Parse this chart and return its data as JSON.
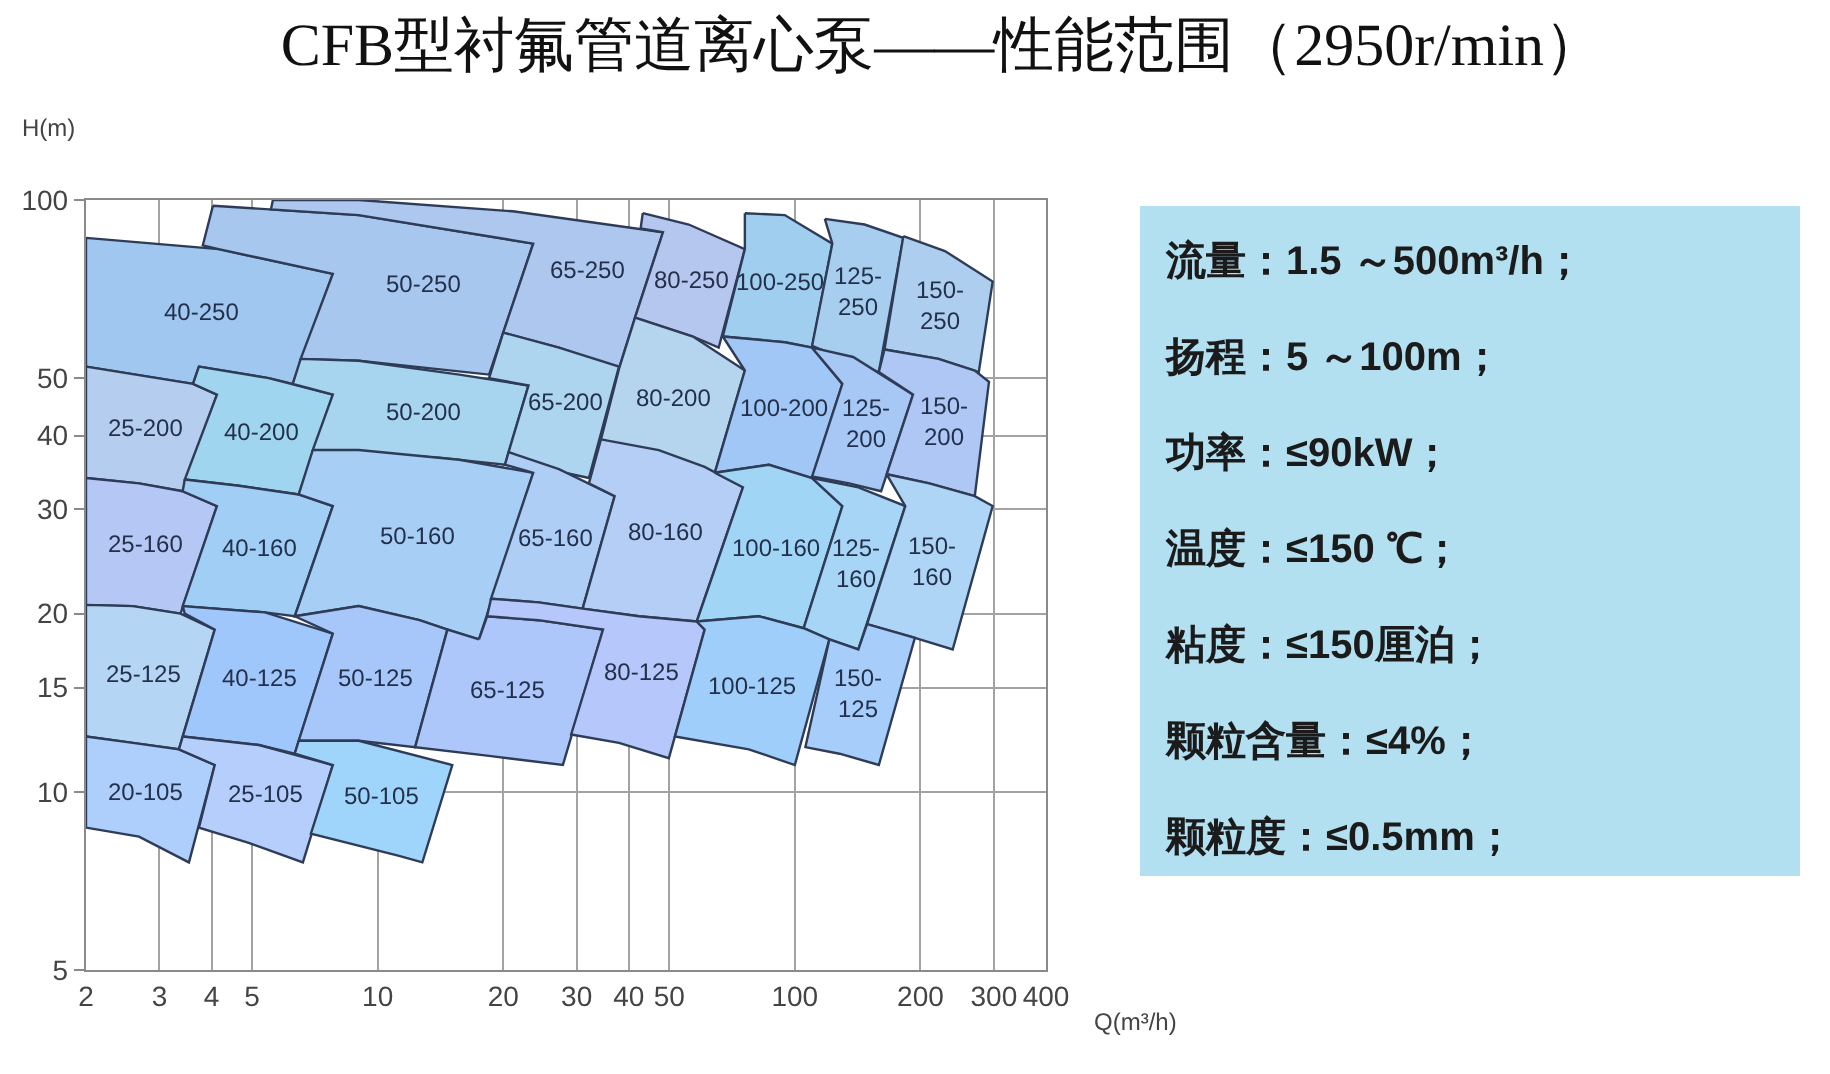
{
  "chart_data": [
    {
      "type": "area",
      "title": "CFB型衬氟管道离心泵——性能范围（2950r/min）",
      "xlabel": "Q(m³/h)",
      "ylabel": "H(m)",
      "log": "xy",
      "xlim": [
        2,
        400
      ],
      "ylim": [
        5,
        100
      ],
      "xticks": [
        2,
        3,
        4,
        5,
        10,
        20,
        30,
        40,
        50,
        100,
        200,
        300,
        400
      ],
      "yticks": [
        5,
        10,
        15,
        20,
        30,
        40,
        50,
        100
      ],
      "grid": true,
      "series": [
        {
          "name": "40-250",
          "color": "#a0c7ef",
          "x": [
            2,
            4.16,
            7.81,
            6.26,
            5.48,
            3.73,
            3.61,
            2.77,
            2
          ],
          "values": [
            86.3,
            82.6,
            75,
            48.9,
            50,
            52.3,
            48.9,
            50.4,
            52.3
          ]
        },
        {
          "name": "50-250",
          "color": "#a7c7ef",
          "x": [
            4.03,
            9.01,
            23.6,
            18.5,
            9.01,
            6.54,
            7.81,
            4.16,
            3.81
          ],
          "values": [
            97.8,
            94.3,
            84.4,
            50.7,
            53.5,
            53.9,
            75,
            82.6,
            83.8
          ]
        },
        {
          "name": "65-250",
          "color": "#aec7ef",
          "x": [
            5.61,
            9.01,
            21.1,
            48.3,
            41.4,
            37.9,
            27.2,
            20,
            23.6,
            9.01,
            5.55
          ],
          "values": [
            100,
            100,
            95.7,
            88.2,
            63.3,
            51.9,
            56.3,
            59.7,
            84.4,
            94.3,
            96.4
          ]
        },
        {
          "name": "80-250",
          "color": "#b5c7ef",
          "x": [
            43.2,
            55.7,
            75.9,
            65.7,
            57,
            41.4,
            48.3,
            42.7
          ],
          "values": [
            95,
            90.9,
            82.6,
            56.3,
            58.8,
            63.3,
            88.2,
            89.5
          ]
        },
        {
          "name": "100-250",
          "color": "#a0ceef",
          "x": [
            75.9,
            94.6,
            123,
            110,
            94.6,
            67.2,
            75.9
          ],
          "values": [
            95,
            94.3,
            84.4,
            56.3,
            57.5,
            58.8,
            82.6
          ]
        },
        {
          "name": "125-250",
          "color": "#a7ceef",
          "x": [
            118,
            147,
            182,
            159,
            135,
            110,
            123
          ],
          "values": [
            92.9,
            90.9,
            86.3,
            51.2,
            53.5,
            56.7,
            84.4
          ]
        },
        {
          "name": "150-250",
          "color": "#aeceef",
          "x": [
            182,
            229,
            298,
            276,
            221,
            164
          ],
          "values": [
            86.9,
            82,
            72.8,
            51.2,
            53.9,
            55.9
          ]
        },
        {
          "name": "25-200",
          "color": "#b5ceef",
          "x": [
            2,
            2.77,
            3.61,
            4.12,
            3.41,
            2.68,
            2
          ],
          "values": [
            52.3,
            50.4,
            48.9,
            46.9,
            32.2,
            33.2,
            33.9
          ]
        },
        {
          "name": "40-200",
          "color": "#a0d5ef",
          "x": [
            3.73,
            5.48,
            7.81,
            6.47,
            4.65,
            3.45,
            4.12,
            3.61
          ],
          "values": [
            52.3,
            50,
            46.9,
            31.8,
            32.9,
            33.7,
            46.9,
            48.9
          ]
        },
        {
          "name": "50-200",
          "color": "#a7d5ef",
          "x": [
            6.54,
            9.01,
            15.7,
            23,
            20.2,
            14,
            6.99,
            7.81,
            6.26
          ],
          "values": [
            53.9,
            53.5,
            50.7,
            48.6,
            35.7,
            36.7,
            37.8,
            46.9,
            48.9
          ]
        },
        {
          "name": "65-200",
          "color": "#aed5ef",
          "x": [
            20,
            27.2,
            37.9,
            32.1,
            25.7,
            20.6,
            23,
            18.5
          ],
          "values": [
            59.7,
            56.3,
            52.3,
            33.9,
            35.1,
            37.5,
            48.6,
            50
          ]
        },
        {
          "name": "80-200",
          "color": "#b5d5ef",
          "x": [
            41.4,
            57,
            75.9,
            64.3,
            47.2,
            34.3,
            37.9
          ],
          "values": [
            63.3,
            58.8,
            51.5,
            34.6,
            37,
            39.4,
            51.9
          ]
        },
        {
          "name": "100-200",
          "color": "#a0c7f5",
          "x": [
            67.2,
            94.6,
            110,
            130,
            110,
            86.7,
            64.3,
            75.9
          ],
          "values": [
            58.8,
            57.5,
            56.3,
            48.9,
            33.9,
            35.7,
            34.6,
            51.5
          ]
        },
        {
          "name": "125-200",
          "color": "#a7c7f5",
          "x": [
            110,
            138,
            192,
            161,
            135,
            110,
            130
          ],
          "values": [
            56.3,
            54.3,
            46.9,
            32.2,
            33.2,
            34.1,
            48.9
          ]
        },
        {
          "name": "150-200",
          "color": "#aec7f5",
          "x": [
            164,
            221,
            270,
            292,
            270,
            210,
            166,
            192,
            159
          ],
          "values": [
            55.9,
            53.9,
            51.5,
            49.3,
            31.6,
            33.2,
            34.4,
            46.9,
            51.2
          ]
        },
        {
          "name": "25-160",
          "color": "#b5c7f5",
          "x": [
            2,
            2.68,
            3.41,
            4.12,
            3.37,
            2.59,
            2
          ],
          "values": [
            33.9,
            33.2,
            32.2,
            30.4,
            20,
            20.6,
            20.7
          ]
        },
        {
          "name": "40-160",
          "color": "#a0cef5",
          "x": [
            3.45,
            4.65,
            6.47,
            7.81,
            6.33,
            5.37,
            3.41,
            4.12,
            3.41
          ],
          "values": [
            33.7,
            32.9,
            31.8,
            30.4,
            19.8,
            20.1,
            20.6,
            30.4,
            32.2
          ]
        },
        {
          "name": "50-160",
          "color": "#a7cef5",
          "x": [
            6.99,
            9.01,
            15.7,
            23.6,
            17.5,
            14.7,
            12.6,
            9.01,
            6.33,
            7.81,
            6.47
          ],
          "values": [
            37.8,
            37.8,
            36.4,
            34.6,
            18.1,
            18.8,
            19.5,
            20.6,
            19.8,
            30.4,
            31.8
          ]
        },
        {
          "name": "65-160",
          "color": "#aecef5",
          "x": [
            20.6,
            27.2,
            37,
            31,
            24.3,
            18.7,
            23.6,
            20.2
          ],
          "values": [
            37.5,
            35.1,
            31.6,
            20.4,
            20.9,
            21.2,
            34.6,
            35.7
          ]
        },
        {
          "name": "80-160",
          "color": "#b5cef5",
          "x": [
            34.3,
            47.2,
            60.8,
            75.1,
            58.2,
            42.3,
            31,
            37,
            32.1
          ],
          "values": [
            39.4,
            37.8,
            35.4,
            32.7,
            19.4,
            19.8,
            20.4,
            31.6,
            33.2
          ]
        },
        {
          "name": "100-160",
          "color": "#a0d5f5",
          "x": [
            64.3,
            86.7,
            110,
            130,
            105,
            82,
            58.2,
            75.1
          ],
          "values": [
            34.6,
            35.7,
            33.9,
            30.4,
            18.9,
            19.8,
            19.4,
            32.7
          ]
        },
        {
          "name": "125-160",
          "color": "#a7d5f5",
          "x": [
            110,
            142,
            184,
            142,
            121,
            105,
            130
          ],
          "values": [
            33.9,
            32.7,
            30.4,
            17.4,
            18.1,
            18.9,
            30.4
          ]
        },
        {
          "name": "150-160",
          "color": "#aed5f5",
          "x": [
            166,
            210,
            270,
            298,
            239,
            194,
            149,
            184
          ],
          "values": [
            34.4,
            33.2,
            31.6,
            30.4,
            17.4,
            18.2,
            19.2,
            30.4
          ]
        },
        {
          "name": "25-125",
          "color": "#b5d5f5",
          "x": [
            2,
            2.59,
            3.37,
            4.07,
            3.34,
            2.59,
            2
          ],
          "values": [
            20.7,
            20.6,
            20,
            18.8,
            11.8,
            12.1,
            12.4
          ]
        },
        {
          "name": "40-125",
          "color": "#a0c7fb",
          "x": [
            3.41,
            5.37,
            7.81,
            6.33,
            5.19,
            3.41,
            4.07,
            3.45
          ],
          "values": [
            20.6,
            20.1,
            18.5,
            11.6,
            12,
            12.4,
            18.8,
            20
          ]
        },
        {
          "name": "50-125",
          "color": "#a7c7fb",
          "x": [
            6.33,
            9.01,
            12.6,
            14.7,
            12.3,
            9.01,
            6.47,
            7.81
          ],
          "values": [
            19.8,
            20.6,
            19.5,
            18.8,
            11.9,
            12.2,
            12.2,
            18.5
          ]
        },
        {
          "name": "65-125",
          "color": "#aec7fb",
          "x": [
            17.5,
            18.3,
            24.3,
            34.7,
            27.8,
            18.5,
            12.3,
            14.7
          ],
          "values": [
            18.1,
            19.8,
            19.5,
            18.8,
            11.1,
            11.5,
            11.9,
            18.8
          ]
        },
        {
          "name": "80-125",
          "color": "#b5c7fb",
          "x": [
            18.7,
            24.3,
            31,
            42.3,
            58.2,
            60.8,
            49.9,
            37.9,
            29.1,
            34.7,
            24.3,
            18.3
          ],
          "values": [
            21.2,
            20.9,
            20.4,
            19.8,
            19.4,
            18.8,
            11.4,
            12.1,
            12.5,
            18.8,
            19.5,
            19.8
          ]
        },
        {
          "name": "100-125",
          "color": "#a0cefb",
          "x": [
            58.2,
            82,
            105,
            121,
            100,
            77.6,
            51.6,
            60.8
          ],
          "values": [
            19.4,
            19.8,
            18.9,
            18.1,
            11.1,
            11.8,
            12.4,
            18.8
          ]
        },
        {
          "name": "150-125",
          "color": "#a7cefb",
          "x": [
            121,
            142,
            149,
            194,
            159,
            128,
            106
          ],
          "values": [
            18.1,
            17.4,
            19.2,
            18.2,
            11.1,
            11.6,
            11.9
          ]
        },
        {
          "name": "20-105",
          "color": "#aecefb",
          "x": [
            2,
            2.59,
            3.34,
            4.07,
            3.53,
            2.68,
            2
          ],
          "values": [
            12.4,
            12.1,
            11.8,
            11.1,
            7.6,
            8.4,
            8.7
          ]
        },
        {
          "name": "25-105",
          "color": "#b5cefb",
          "x": [
            3.41,
            5.19,
            7.81,
            6.62,
            4.91,
            3.73,
            4.07,
            3.34
          ],
          "values": [
            12.4,
            12,
            11.1,
            7.6,
            8.2,
            8.7,
            11.1,
            11.8
          ]
        },
        {
          "name": "50-105",
          "color": "#a0d5fb",
          "x": [
            6.47,
            9.01,
            15.1,
            12.8,
            11.2,
            6.92,
            7.81,
            6.33
          ],
          "values": [
            12.2,
            12.2,
            11.1,
            7.6,
            7.8,
            8.5,
            11.1,
            11.6
          ]
        }
      ]
    },
    {
      "type": "other",
      "color": "#b3e0f1",
      "annotations": [
        "流量：1.5 ～500m³/h；",
        "扬程：5 ～100m；",
        "功率：≤90kW；",
        "温度：≤150 ℃；",
        "粘度：≤150厘泊；",
        "颗粒含量：≤4%；",
        "颗粒度：≤0.5mm；"
      ]
    }
  ]
}
